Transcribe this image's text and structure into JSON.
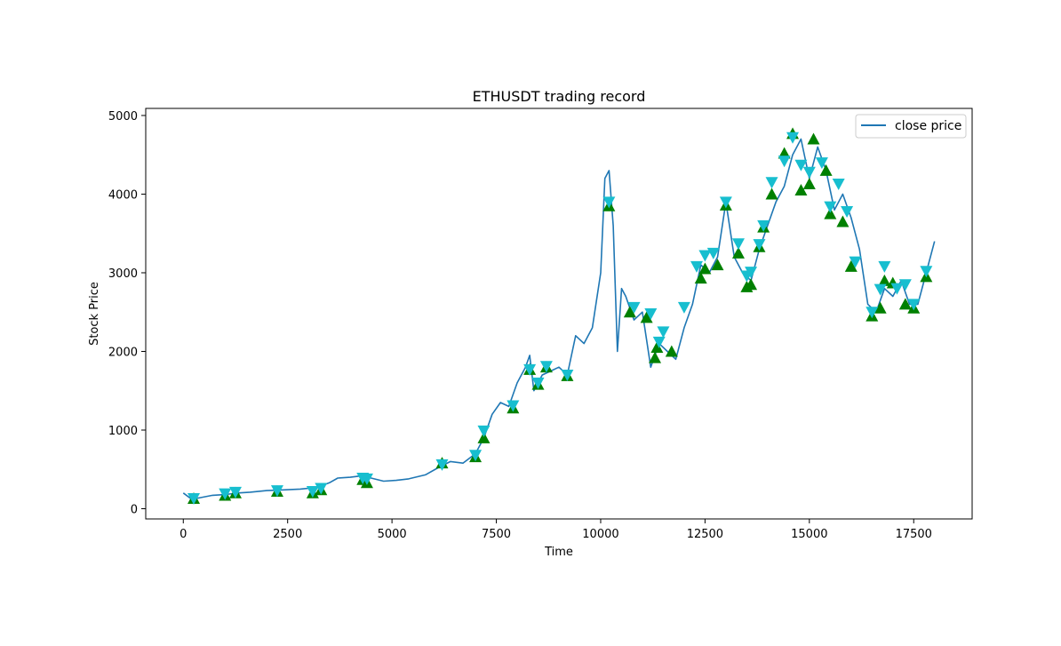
{
  "chart_data": {
    "type": "line",
    "title": "ETHUSDT trading record",
    "xlabel": "Time",
    "ylabel": "Stock Price",
    "xlim": [
      -900,
      18900
    ],
    "ylim": [
      -130,
      5090
    ],
    "xticks": [
      0,
      2500,
      5000,
      7500,
      10000,
      12500,
      15000,
      17500
    ],
    "yticks": [
      0,
      1000,
      2000,
      3000,
      4000,
      5000
    ],
    "grid": false,
    "legend": {
      "placement": "top-right",
      "entries": [
        "close price"
      ]
    },
    "colors": {
      "line": "#1f77b4",
      "buy": "#008000",
      "sell": "#17becf"
    },
    "series": [
      {
        "name": "close price",
        "x": [
          0,
          200,
          400,
          700,
          1000,
          1300,
          1600,
          2000,
          2400,
          2800,
          3200,
          3500,
          3700,
          4000,
          4300,
          4500,
          4800,
          5100,
          5400,
          5800,
          6100,
          6400,
          6700,
          7000,
          7200,
          7400,
          7600,
          7800,
          8000,
          8200,
          8300,
          8400,
          8600,
          8800,
          9000,
          9200,
          9400,
          9600,
          9800,
          10000,
          10100,
          10200,
          10300,
          10400,
          10500,
          10600,
          10800,
          11000,
          11200,
          11400,
          11600,
          11800,
          12000,
          12200,
          12400,
          12600,
          12800,
          13000,
          13200,
          13400,
          13600,
          13800,
          14000,
          14200,
          14400,
          14600,
          14800,
          15000,
          15200,
          15400,
          15600,
          15800,
          16000,
          16200,
          16400,
          16600,
          16800,
          17000,
          17200,
          17400,
          17600,
          17800,
          18000
        ],
        "y": [
          200,
          120,
          140,
          170,
          180,
          200,
          210,
          230,
          240,
          250,
          270,
          330,
          390,
          400,
          420,
          390,
          350,
          360,
          380,
          430,
          520,
          600,
          580,
          700,
          900,
          1200,
          1350,
          1300,
          1600,
          1800,
          1950,
          1500,
          1700,
          1750,
          1800,
          1700,
          2200,
          2100,
          2300,
          3000,
          4200,
          4300,
          3600,
          2000,
          2800,
          2700,
          2400,
          2500,
          1800,
          2100,
          2000,
          1900,
          2300,
          2600,
          3100,
          3000,
          3200,
          3900,
          3200,
          3000,
          2900,
          3300,
          3600,
          3900,
          4100,
          4500,
          4700,
          4200,
          4600,
          4300,
          3800,
          4000,
          3700,
          3300,
          2600,
          2500,
          2800,
          2700,
          2900,
          2600,
          2600,
          3000,
          3400
        ]
      }
    ],
    "buy_markers": {
      "x": [
        250,
        1000,
        1250,
        2250,
        3100,
        3300,
        4300,
        4400,
        6200,
        7000,
        7200,
        7900,
        8300,
        8500,
        8700,
        9200,
        10200,
        10700,
        11100,
        11300,
        11350,
        11700,
        12400,
        12500,
        12800,
        13000,
        13300,
        13500,
        13600,
        13800,
        13900,
        14100,
        14400,
        14600,
        14800,
        15000,
        15100,
        15400,
        15500,
        15800,
        16000,
        16500,
        16700,
        16800,
        17000,
        17300,
        17500,
        17800
      ],
      "y": [
        130,
        170,
        200,
        220,
        200,
        240,
        370,
        330,
        580,
        660,
        900,
        1280,
        1770,
        1580,
        1800,
        1690,
        3850,
        2500,
        2430,
        1920,
        2050,
        2000,
        2930,
        3050,
        3100,
        3860,
        3250,
        2820,
        2850,
        3330,
        3580,
        4000,
        4520,
        4770,
        4050,
        4130,
        4700,
        4300,
        3750,
        3650,
        3080,
        2450,
        2550,
        2900,
        2870,
        2600,
        2550,
        2950
      ]
    },
    "sell_markers": {
      "x": [
        250,
        1000,
        1250,
        2250,
        3100,
        3300,
        4300,
        4400,
        6200,
        7000,
        7200,
        7900,
        8300,
        8500,
        8700,
        9200,
        10200,
        10800,
        11200,
        11400,
        11500,
        12000,
        12300,
        12500,
        12700,
        13000,
        13300,
        13500,
        13600,
        13800,
        13900,
        14100,
        14400,
        14600,
        14800,
        15000,
        15300,
        15500,
        15700,
        15900,
        16100,
        16500,
        16700,
        16800,
        17100,
        17300,
        17500,
        17800
      ],
      "y": [
        130,
        190,
        210,
        230,
        220,
        260,
        390,
        380,
        560,
        680,
        990,
        1310,
        1770,
        1600,
        1810,
        1700,
        3900,
        2560,
        2480,
        2120,
        2250,
        2560,
        3080,
        3220,
        3250,
        3900,
        3370,
        2960,
        3010,
        3360,
        3600,
        4150,
        4420,
        4720,
        4370,
        4280,
        4400,
        3840,
        4130,
        3780,
        3140,
        2500,
        2790,
        3080,
        2800,
        2850,
        2600,
        3020
      ]
    }
  }
}
